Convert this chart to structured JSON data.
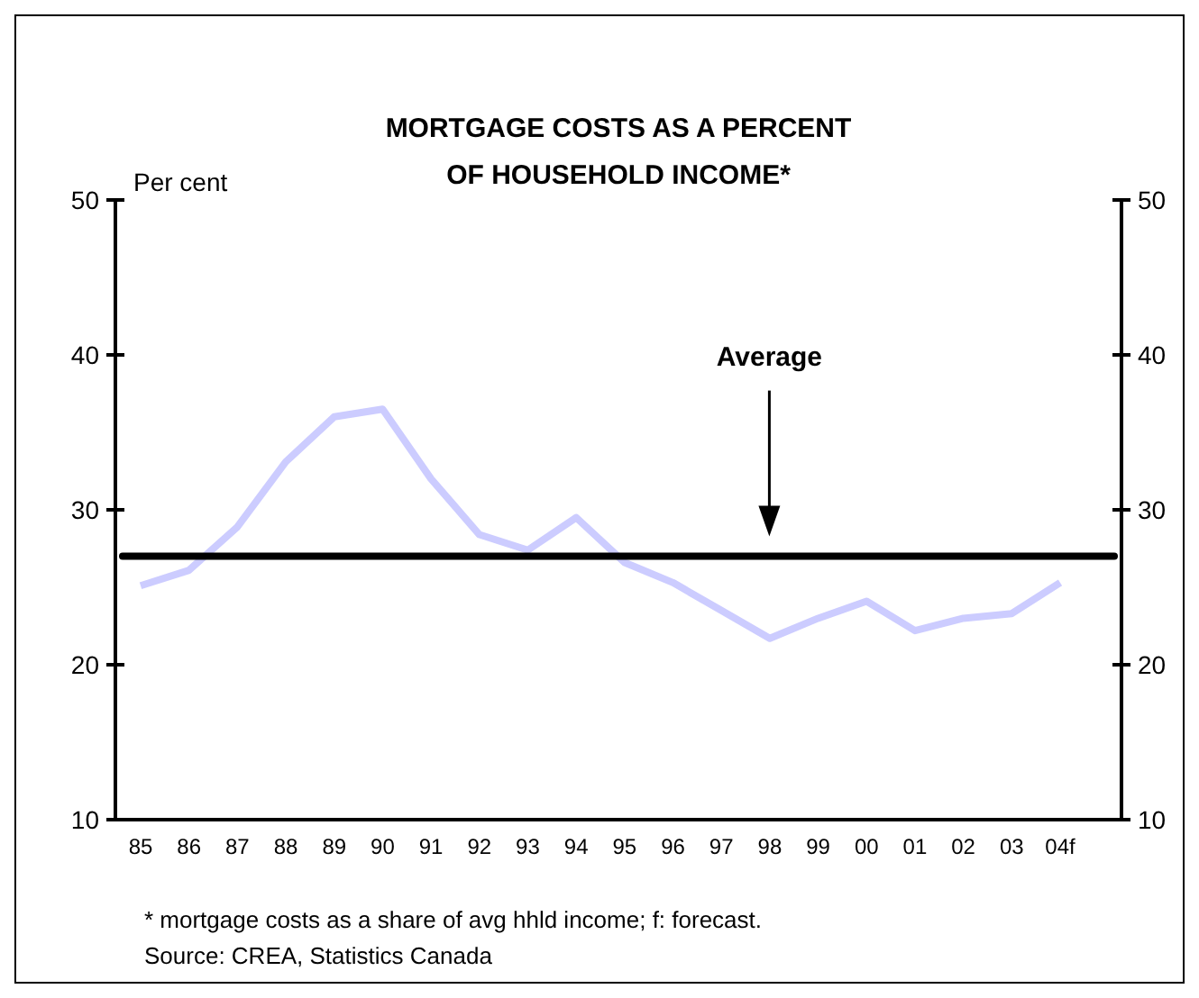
{
  "chart_data": {
    "type": "line",
    "title": "MORTGAGE COSTS AS A PERCENT OF HOUSEHOLD INCOME*",
    "ylabel": "Per cent",
    "categories": [
      "85",
      "86",
      "87",
      "88",
      "89",
      "90",
      "91",
      "92",
      "93",
      "94",
      "95",
      "96",
      "97",
      "98",
      "99",
      "00",
      "01",
      "02",
      "03",
      "04f"
    ],
    "series": [
      {
        "color": "#ccccff",
        "values": [
          25.1,
          26.1,
          28.9,
          33.1,
          36,
          36.5,
          32,
          28.4,
          27.4,
          29.5,
          26.6,
          25.3,
          23.5,
          21.7,
          23,
          24.1,
          22.2,
          23,
          23.3,
          25.3
        ]
      }
    ],
    "ylim": [
      10,
      50
    ],
    "yticks": [
      10,
      20,
      30,
      40,
      50
    ],
    "y2lim": [
      10,
      50
    ],
    "y2ticks": [
      10,
      20,
      30,
      40,
      50
    ],
    "ref_lines": [
      {
        "axis": "y",
        "value": 27,
        "label": "Average",
        "color": "#000000"
      }
    ],
    "annotations": [
      "* mortgage costs as a share of avg hhld income; f: forecast.",
      "Source: CREA, Statistics Canada"
    ],
    "grid": false,
    "marker": "none",
    "line_style": "solid"
  }
}
